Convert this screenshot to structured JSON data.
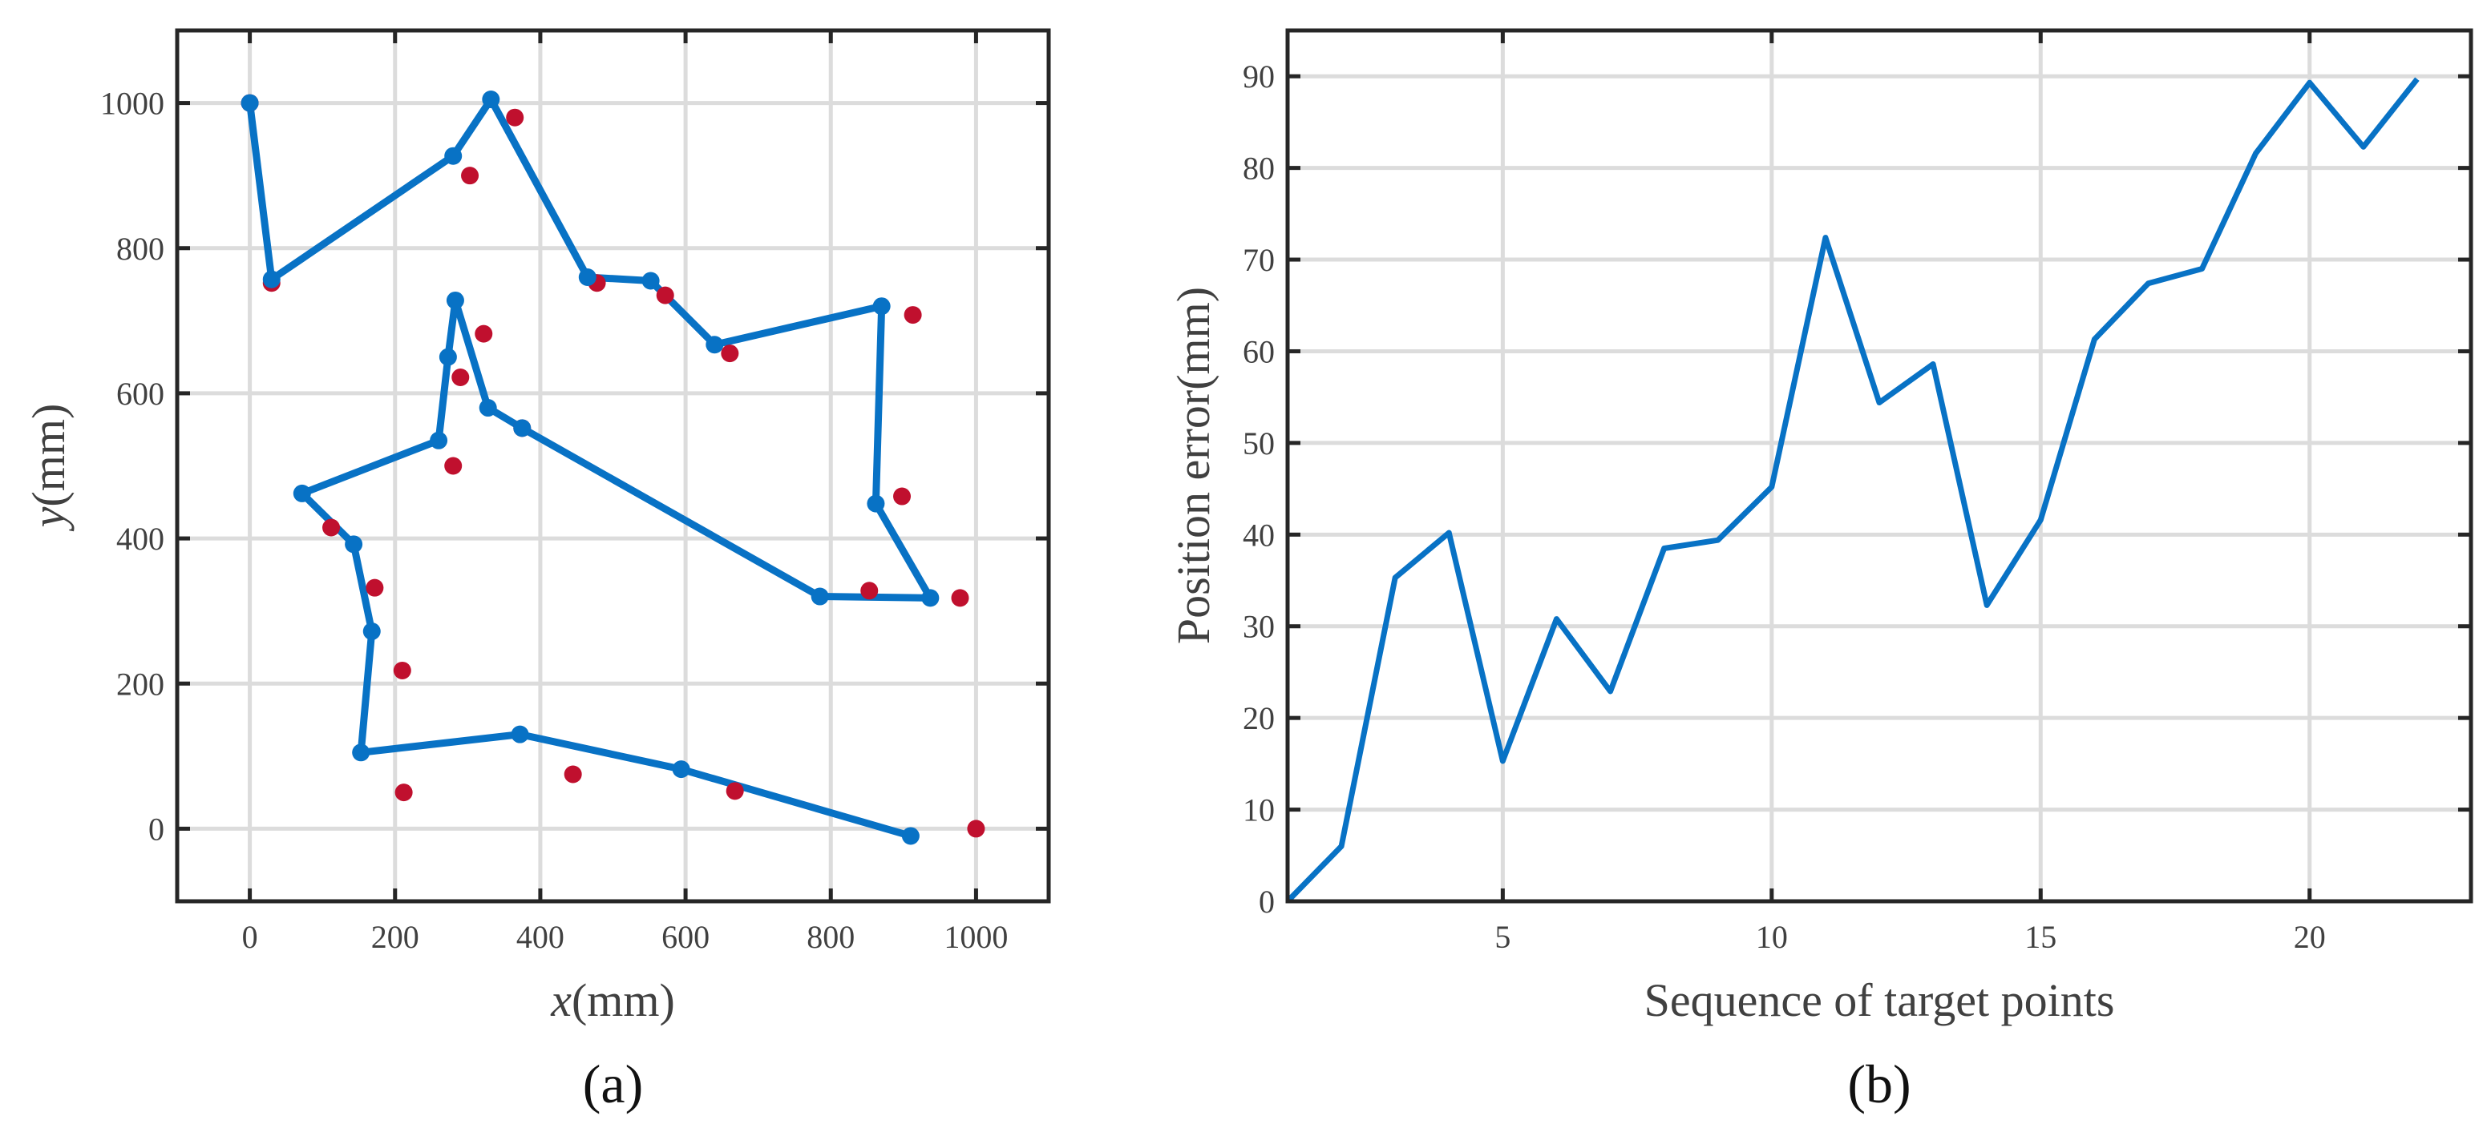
{
  "chart_data": [
    {
      "type": "line",
      "caption": "(a)",
      "xlabel_italic": "x",
      "xlabel_rest": "(mm)",
      "ylabel_italic": "y",
      "ylabel_rest": "(mm)",
      "xlim": [
        -100,
        1100
      ],
      "ylim": [
        -100,
        1100
      ],
      "xticks": [
        0,
        200,
        400,
        600,
        800,
        1000
      ],
      "yticks": [
        0,
        200,
        400,
        600,
        800,
        1000
      ],
      "grid": true,
      "colors": {
        "path": "#0872c5",
        "targets": "#c0102e"
      },
      "series": [
        {
          "kind": "line-with-markers",
          "x": [
            0,
            30,
            280,
            332,
            465,
            552,
            640,
            870,
            862,
            937,
            785,
            375,
            328,
            283,
            273,
            260,
            72,
            143,
            168,
            153,
            372,
            594,
            910
          ],
          "y": [
            1000,
            757,
            927,
            1005,
            760,
            755,
            667,
            720,
            448,
            318,
            320,
            552,
            580,
            728,
            650,
            535,
            462,
            392,
            272,
            105,
            130,
            82,
            -10
          ]
        },
        {
          "kind": "scatter",
          "x": [
            0,
            30,
            365,
            303,
            478,
            572,
            661,
            913,
            898,
            978,
            853,
            375,
            322,
            290,
            280,
            112,
            172,
            210,
            212,
            445,
            668,
            1000
          ],
          "y": [
            1000,
            752,
            980,
            900,
            752,
            735,
            655,
            708,
            458,
            318,
            328,
            552,
            682,
            622,
            500,
            415,
            332,
            218,
            50,
            75,
            52,
            0
          ]
        }
      ]
    },
    {
      "type": "line",
      "caption": "(b)",
      "xlabel": "Sequence of target points",
      "ylabel": "Position error(mm)",
      "xlim": [
        1,
        23
      ],
      "ylim": [
        0,
        95
      ],
      "xticks": [
        5,
        10,
        15,
        20
      ],
      "yticks": [
        0,
        10,
        20,
        30,
        40,
        50,
        60,
        70,
        80,
        90
      ],
      "grid": true,
      "colors": {
        "line": "#0872c5"
      },
      "x": [
        1,
        2,
        3,
        4,
        5,
        6,
        7,
        8,
        9,
        10,
        11,
        12,
        13,
        14,
        15,
        16,
        17,
        18,
        19,
        20,
        21,
        22
      ],
      "y": [
        0,
        6,
        35.3,
        40.2,
        15.3,
        30.8,
        22.9,
        38.5,
        39.4,
        45.2,
        72.4,
        54.4,
        58.6,
        32.3,
        41.6,
        61.3,
        67.4,
        69,
        81.6,
        89.3,
        82.3,
        89.7
      ]
    }
  ]
}
